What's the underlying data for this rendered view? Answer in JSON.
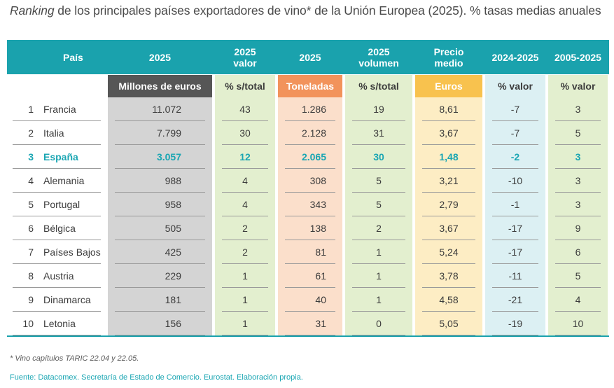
{
  "title": {
    "italic": "Ranking",
    "rest": " de los principales países exportadores de vino* de la Unión Europea (2025). % tasas medias anuales"
  },
  "colors": {
    "header_teal": "#1aa2ad",
    "highlight": "#1aa6b3",
    "grey_col": "#d4d4d4",
    "green_col": "#e3efcf",
    "peach_col": "#fbdfcb",
    "yellow_col": "#fdedc4",
    "blue_col": "#dcf0f3",
    "sub_dark": "#565656",
    "sub_orange": "#f2935b",
    "sub_yellow": "#f8c24e"
  },
  "headers": {
    "pais": "País",
    "c2025": "2025",
    "valor_l1": "2025",
    "valor_l2": "valor",
    "ton": "2025",
    "vol_l1": "2025",
    "vol_l2": "volumen",
    "precio_l1": "Precio",
    "precio_l2": "medio",
    "r2425": "2024-2025",
    "r0525": "2005-2025"
  },
  "subheaders": {
    "millones": "Millones de euros",
    "pct_total_1": "% s/total",
    "toneladas": "Toneladas",
    "pct_total_2": "% s/total",
    "euros": "Euros",
    "pct_valor_1": "% valor",
    "pct_valor_2": "% valor"
  },
  "rows": [
    {
      "rank": "1",
      "country": "Francia",
      "millones": "11.072",
      "pct_val": "43",
      "ton": "1.286",
      "pct_vol": "19",
      "precio": "8,61",
      "r2425": "-7",
      "r0525": "3"
    },
    {
      "rank": "2",
      "country": "Italia",
      "millones": "7.799",
      "pct_val": "30",
      "ton": "2.128",
      "pct_vol": "31",
      "precio": "3,67",
      "r2425": "-7",
      "r0525": "5"
    },
    {
      "rank": "3",
      "country": "España",
      "millones": "3.057",
      "pct_val": "12",
      "ton": "2.065",
      "pct_vol": "30",
      "precio": "1,48",
      "r2425": "-2",
      "r0525": "3"
    },
    {
      "rank": "4",
      "country": "Alemania",
      "millones": "988",
      "pct_val": "4",
      "ton": "308",
      "pct_vol": "5",
      "precio": "3,21",
      "r2425": "-10",
      "r0525": "3"
    },
    {
      "rank": "5",
      "country": "Portugal",
      "millones": "958",
      "pct_val": "4",
      "ton": "343",
      "pct_vol": "5",
      "precio": "2,79",
      "r2425": "-1",
      "r0525": "3"
    },
    {
      "rank": "6",
      "country": "Bélgica",
      "millones": "505",
      "pct_val": "2",
      "ton": "138",
      "pct_vol": "2",
      "precio": "3,67",
      "r2425": "-17",
      "r0525": "9"
    },
    {
      "rank": "7",
      "country": "Países Bajos",
      "millones": "425",
      "pct_val": "2",
      "ton": "81",
      "pct_vol": "1",
      "precio": "5,24",
      "r2425": "-17",
      "r0525": "6"
    },
    {
      "rank": "8",
      "country": "Austria",
      "millones": "229",
      "pct_val": "1",
      "ton": "61",
      "pct_vol": "1",
      "precio": "3,78",
      "r2425": "-11",
      "r0525": "5"
    },
    {
      "rank": "9",
      "country": "Dinamarca",
      "millones": "181",
      "pct_val": "1",
      "ton": "40",
      "pct_vol": "1",
      "precio": "4,58",
      "r2425": "-21",
      "r0525": "4"
    },
    {
      "rank": "10",
      "country": "Letonia",
      "millones": "156",
      "pct_val": "1",
      "ton": "31",
      "pct_vol": "0",
      "precio": "5,05",
      "r2425": "-19",
      "r0525": "10"
    }
  ],
  "highlight_rank": "3",
  "footnote": "* Vino capítulos TARIC 22.04 y 22.05.",
  "source": "Fuente: Datacomex. Secretaría de Estado de Comercio. Eurostat. Elaboración propia."
}
